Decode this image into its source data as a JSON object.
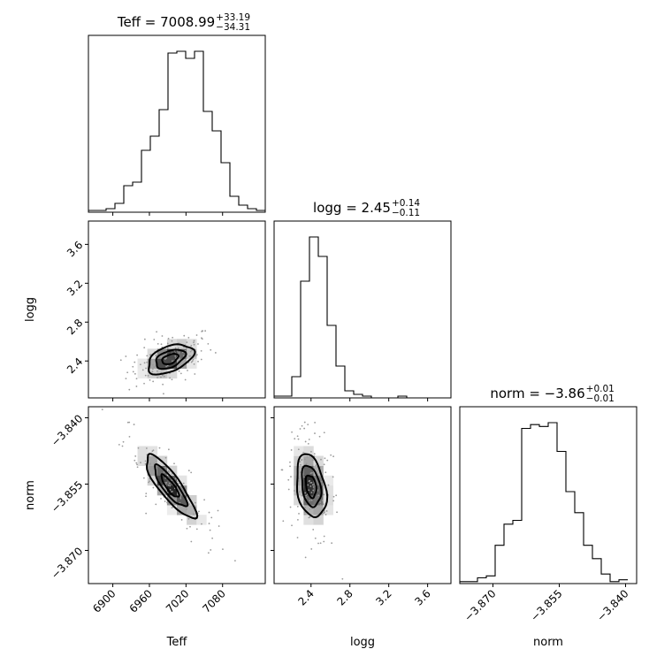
{
  "chart_data": {
    "type": "corner",
    "parameters": [
      "Teff",
      "logg",
      "norm"
    ],
    "titles": [
      {
        "label": "Teff",
        "value": "7008.99",
        "plus": "+33.19",
        "minus": "−34.31"
      },
      {
        "label": "logg",
        "value": "2.45",
        "plus": "+0.14",
        "minus": "−0.11"
      },
      {
        "label": "norm",
        "value": "−3.86",
        "plus": "+0.01",
        "minus": "−0.01"
      }
    ],
    "axes": {
      "Teff": {
        "range": [
          6860,
          7150
        ],
        "ticks": [
          6900,
          6960,
          7020,
          7080
        ],
        "tick_labels": [
          "6900",
          "6960",
          "7020",
          "7080"
        ]
      },
      "logg": {
        "range": [
          2.02,
          3.84
        ],
        "ticks": [
          2.4,
          2.8,
          3.2,
          3.6
        ],
        "tick_labels": [
          "2.4",
          "2.8",
          "3.2",
          "3.6"
        ]
      },
      "norm": {
        "range": [
          -3.8775,
          -3.8375
        ],
        "ticks": [
          -3.87,
          -3.855,
          -3.84
        ],
        "tick_labels": [
          "−3.870",
          "−3.855",
          "−3.840"
        ]
      }
    },
    "histograms": [
      {
        "parameter": "Teff",
        "bin_start": 6860,
        "bin_width": 14.5,
        "counts": [
          1,
          1,
          2,
          5,
          15,
          17,
          35,
          43,
          58,
          90,
          91,
          87,
          91,
          57,
          46,
          28,
          9,
          4,
          2,
          1
        ]
      },
      {
        "parameter": "logg",
        "bin_start": 2.02,
        "bin_width": 0.091,
        "counts": [
          1,
          1,
          12,
          66,
          91,
          80,
          41,
          18,
          4,
          2,
          1,
          0,
          0,
          0,
          1,
          0,
          0,
          0,
          0,
          0
        ]
      },
      {
        "parameter": "norm",
        "bin_start": -3.8775,
        "bin_width": 0.002,
        "counts": [
          1,
          1,
          3,
          4,
          20,
          31,
          33,
          81,
          83,
          82,
          84,
          69,
          48,
          37,
          20,
          13,
          5,
          1,
          2
        ]
      }
    ],
    "density_peaks": [
      {
        "x": "Teff",
        "y": "logg",
        "peak": [
          6994,
          2.42
        ]
      },
      {
        "x": "Teff",
        "y": "norm",
        "peak": [
          6994,
          -3.8555
        ]
      },
      {
        "x": "logg",
        "y": "norm",
        "peak": [
          2.4,
          -3.8555
        ]
      }
    ]
  }
}
